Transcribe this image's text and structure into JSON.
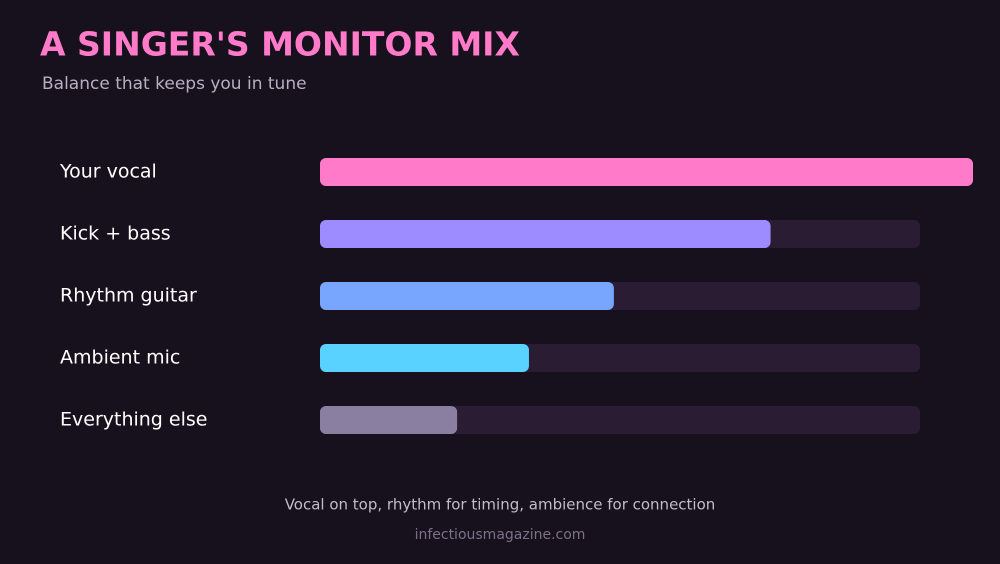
{
  "chart_data": {
    "type": "bar",
    "title": "A SINGER'S MONITOR MIX",
    "subtitle": "Balance that keeps you in tune",
    "categories": [
      "Your vocal",
      "Kick + bass",
      "Rhythm guitar",
      "Ambient mic",
      "Everything else"
    ],
    "values": [
      100,
      69,
      45,
      32,
      21
    ],
    "colors": [
      "#ff7ac8",
      "#9d8cff",
      "#78a6ff",
      "#5ad2ff",
      "#8a7fa0"
    ],
    "caption": "Vocal on top, rhythm for timing, ambience for connection",
    "source": "infectiousmagazine.com"
  }
}
